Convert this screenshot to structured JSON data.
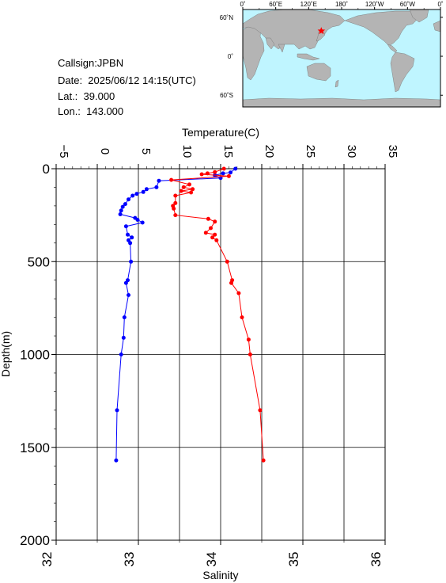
{
  "station": {
    "callsign": "Callsign:JPBN",
    "date": "Date:  2025/06/12 14:15(UTC)",
    "lat": "Lat.:  39.000",
    "lon": "Lon.:  143.000"
  },
  "map": {
    "top_tick_labels": [
      "0˚",
      "60˚E",
      "120˚E",
      "180˚",
      "120˚W",
      "60˚W",
      "0˚"
    ],
    "lat_tick_labels": [
      "60˚N",
      "0˚",
      "60˚S"
    ],
    "ocean_color": "#bff5ff",
    "land_color": "#b4b4b4",
    "marker": {
      "lon": 143.0,
      "lat": 39.0,
      "symbol": "star",
      "color": "#ff0000"
    }
  },
  "chart_data": {
    "type": "line",
    "ylabel": "Depth(m)",
    "y_ticks": [
      0,
      500,
      1000,
      1500,
      2000
    ],
    "ylim": [
      0,
      2000
    ],
    "y_reversed": true,
    "grid": true,
    "temperature_axis": {
      "label": "Temperature(C)",
      "position": "top",
      "ticks": [
        -5,
        0,
        5,
        10,
        15,
        20,
        25,
        30,
        35
      ],
      "lim": [
        -5,
        35
      ]
    },
    "salinity_axis": {
      "label": "Salinity",
      "position": "bottom",
      "ticks": [
        32,
        33,
        34,
        35,
        36
      ],
      "lim": [
        32,
        36
      ]
    },
    "series": [
      {
        "axis": "temperature",
        "color": "#0000ff",
        "points": [
          {
            "x": 16.8,
            "y": 0
          },
          {
            "x": 16.2,
            "y": 20
          },
          {
            "x": 15.3,
            "y": 25
          },
          {
            "x": 14.3,
            "y": 35
          },
          {
            "x": 15.0,
            "y": 50
          },
          {
            "x": 7.5,
            "y": 65
          },
          {
            "x": 7.2,
            "y": 100
          },
          {
            "x": 6.0,
            "y": 110
          },
          {
            "x": 5.6,
            "y": 125
          },
          {
            "x": 4.8,
            "y": 135
          },
          {
            "x": 4.3,
            "y": 145
          },
          {
            "x": 3.8,
            "y": 165
          },
          {
            "x": 3.4,
            "y": 190
          },
          {
            "x": 3.1,
            "y": 205
          },
          {
            "x": 2.9,
            "y": 225
          },
          {
            "x": 2.8,
            "y": 245
          },
          {
            "x": 4.6,
            "y": 265
          },
          {
            "x": 4.9,
            "y": 275
          },
          {
            "x": 5.5,
            "y": 290
          },
          {
            "x": 3.5,
            "y": 310
          },
          {
            "x": 3.7,
            "y": 355
          },
          {
            "x": 4.2,
            "y": 370
          },
          {
            "x": 3.8,
            "y": 385
          },
          {
            "x": 4.0,
            "y": 400
          },
          {
            "x": 4.1,
            "y": 500
          },
          {
            "x": 3.7,
            "y": 600
          },
          {
            "x": 3.5,
            "y": 615
          },
          {
            "x": 3.8,
            "y": 680
          },
          {
            "x": 3.3,
            "y": 800
          },
          {
            "x": 3.2,
            "y": 910
          },
          {
            "x": 2.9,
            "y": 1000
          },
          {
            "x": 2.4,
            "y": 1300
          },
          {
            "x": 2.3,
            "y": 1570
          }
        ]
      },
      {
        "axis": "salinity",
        "color": "#ff0000",
        "points": [
          {
            "x": 34.04,
            "y": 0
          },
          {
            "x": 33.93,
            "y": 18
          },
          {
            "x": 33.84,
            "y": 25
          },
          {
            "x": 33.77,
            "y": 30
          },
          {
            "x": 34.1,
            "y": 40
          },
          {
            "x": 33.4,
            "y": 60
          },
          {
            "x": 33.62,
            "y": 85
          },
          {
            "x": 33.55,
            "y": 100
          },
          {
            "x": 33.66,
            "y": 110
          },
          {
            "x": 33.52,
            "y": 120
          },
          {
            "x": 33.64,
            "y": 128
          },
          {
            "x": 33.45,
            "y": 145
          },
          {
            "x": 33.45,
            "y": 185
          },
          {
            "x": 33.42,
            "y": 200
          },
          {
            "x": 33.43,
            "y": 215
          },
          {
            "x": 33.45,
            "y": 250
          },
          {
            "x": 33.85,
            "y": 270
          },
          {
            "x": 33.93,
            "y": 285
          },
          {
            "x": 33.88,
            "y": 320
          },
          {
            "x": 33.82,
            "y": 345
          },
          {
            "x": 33.93,
            "y": 355
          },
          {
            "x": 33.9,
            "y": 370
          },
          {
            "x": 33.95,
            "y": 385
          },
          {
            "x": 34.08,
            "y": 500
          },
          {
            "x": 34.14,
            "y": 600
          },
          {
            "x": 34.13,
            "y": 615
          },
          {
            "x": 34.22,
            "y": 670
          },
          {
            "x": 34.26,
            "y": 800
          },
          {
            "x": 34.34,
            "y": 920
          },
          {
            "x": 34.36,
            "y": 1000
          },
          {
            "x": 34.48,
            "y": 1300
          },
          {
            "x": 34.52,
            "y": 1570
          }
        ]
      }
    ]
  }
}
